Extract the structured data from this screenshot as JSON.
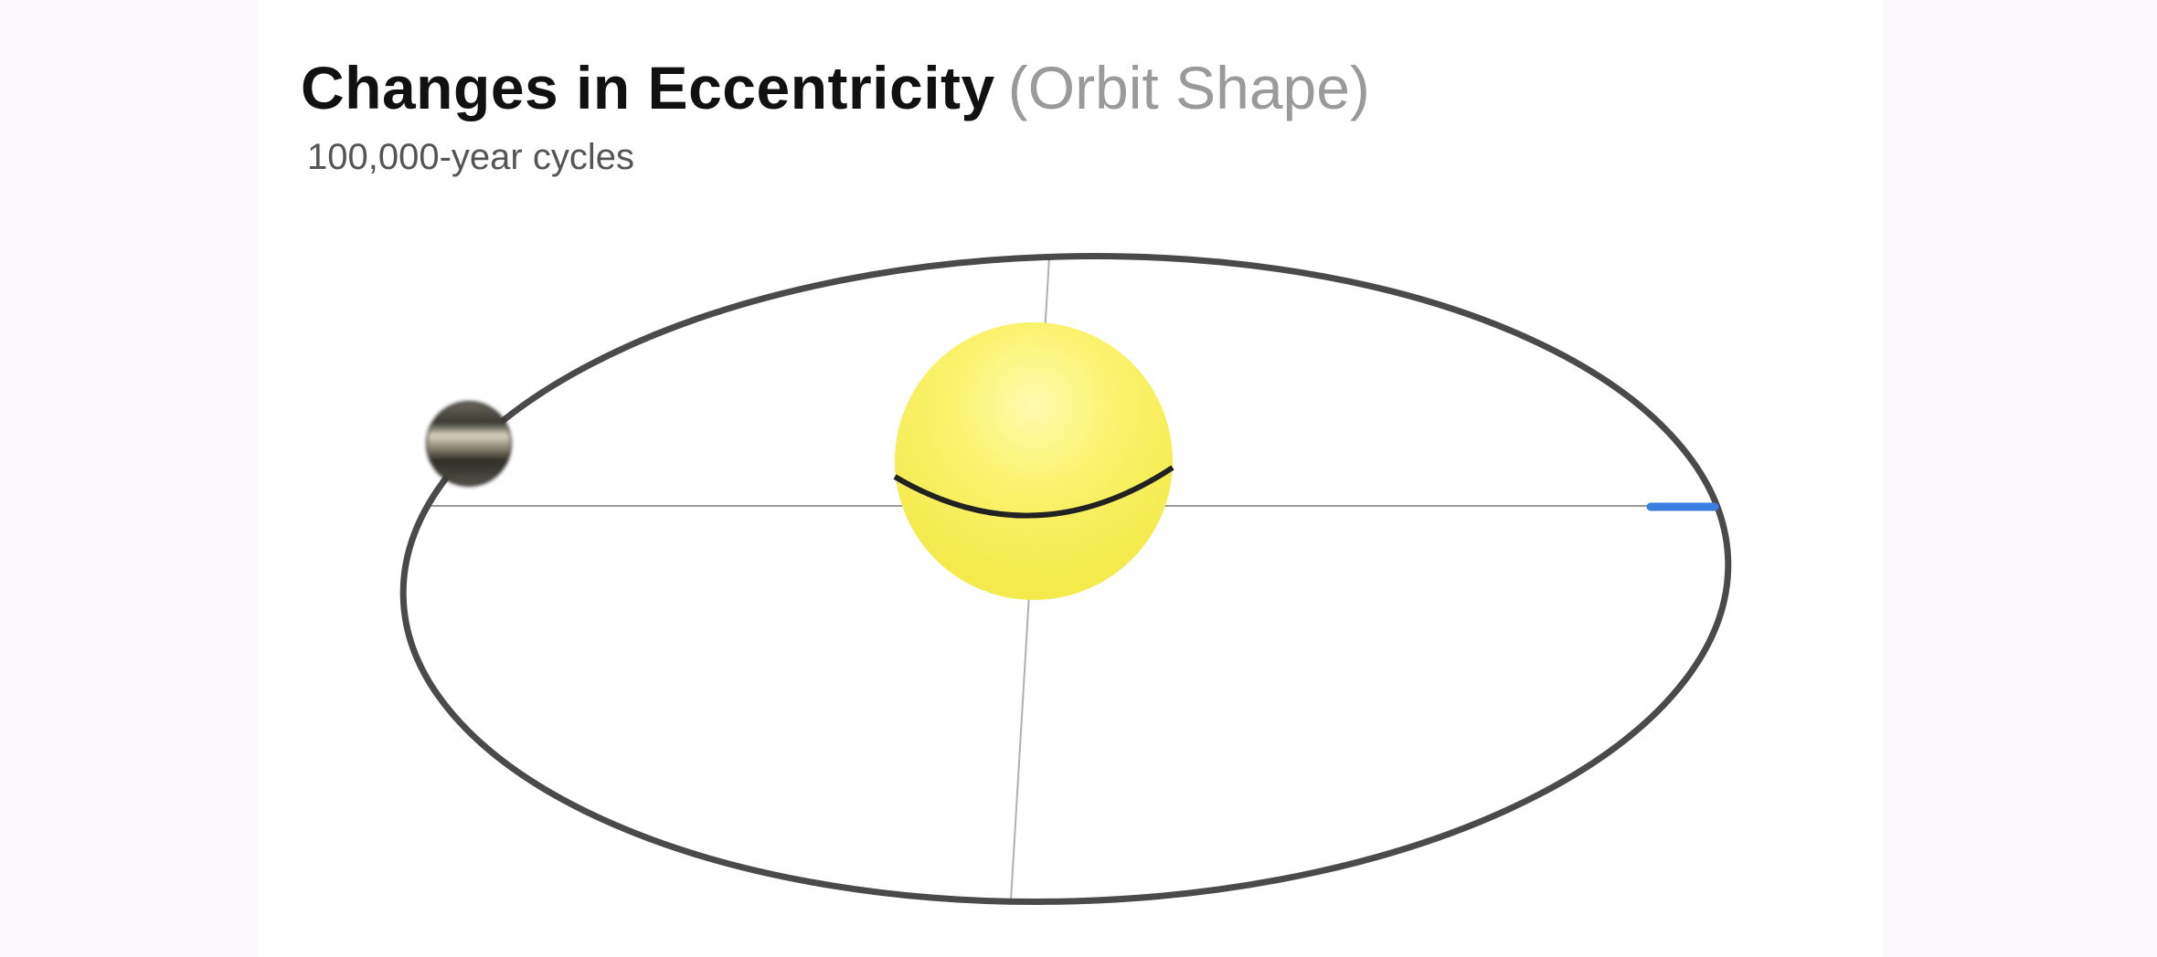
{
  "header": {
    "title": "Changes in Eccentricity",
    "title_qualifier": "(Orbit Shape)",
    "subtitle": "100,000-year cycles"
  },
  "diagram": {
    "type": "orbit-eccentricity",
    "elements": [
      "orbit-ellipse",
      "sun",
      "earth",
      "major-axis",
      "minor-axis",
      "perihelion-marker"
    ],
    "colors": {
      "sun": "#f8f26a",
      "orbit": "#4a4a4a",
      "axes": "#9a9a9a",
      "marker": "#3a7ee0",
      "earth_dark": "#3c3a34",
      "earth_light": "#d8d2bf"
    }
  }
}
